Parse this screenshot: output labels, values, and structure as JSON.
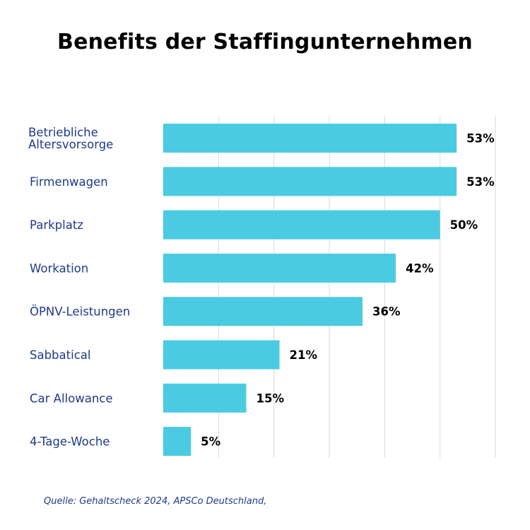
{
  "colors": {
    "bar": "#4ACBE1",
    "label": "#1E3A8A",
    "value": "#000000",
    "grid": "#D9D9D9"
  },
  "source": "Quelle: Gehaltscheck 2024, APSCo Deutschland,",
  "chart_data": {
    "type": "bar",
    "orientation": "horizontal",
    "title": "Benefits der Staffingunternehmen",
    "categories": [
      [
        "Betriebliche",
        "Altersvorsorge"
      ],
      [
        "Firmenwagen"
      ],
      [
        "Parkplatz"
      ],
      [
        "Workation"
      ],
      [
        "ÖPNV-Leistungen"
      ],
      [
        "Sabbatical"
      ],
      [
        "Car Allowance"
      ],
      [
        "4-Tage-Woche"
      ]
    ],
    "values": [
      53,
      53,
      50,
      42,
      36,
      21,
      15,
      5
    ],
    "value_labels": [
      "53%",
      "53%",
      "50%",
      "42%",
      "36%",
      "21%",
      "15%",
      "5%"
    ],
    "xlim": [
      0,
      60
    ],
    "grid": true,
    "xlabel": "",
    "ylabel": ""
  }
}
